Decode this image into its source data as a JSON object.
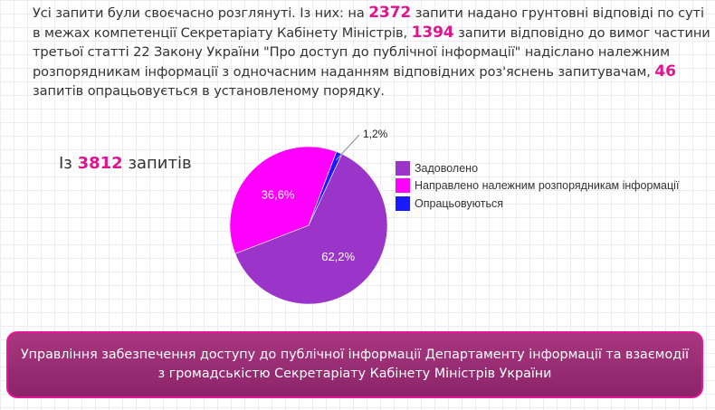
{
  "intro": {
    "t1": "Усі запити були своєчасно розглянуті. Із них: на ",
    "n1": "2372",
    "t2": " запити надано грунтовні відповіді по суті в межах компетенції Секретаріату Кабінету Міністрів, ",
    "n2": "1394",
    "t3": " запити відповідно до вимог частини третьої статті 22 Закону України \"Про доступ до публічної інформації\" надіслано належним розпорядникам інформації з одночасним наданням відповідних роз'яснень запитувачам, ",
    "n3": "46",
    "t4": " запитів опрацьовується в установленому порядку."
  },
  "total": {
    "prefix": "Із ",
    "value": "3812",
    "suffix": " запитів"
  },
  "chart_data": {
    "type": "pie",
    "title": "",
    "slices": [
      {
        "label": "Задоволено",
        "value": 62.2,
        "display": "62,2%",
        "color": "#9b35c9"
      },
      {
        "label": "Направлено належним розпорядникам інформації",
        "value": 36.6,
        "display": "36,6%",
        "color": "#ff00ff"
      },
      {
        "label": "Опрацьовуються",
        "value": 1.2,
        "display": "1,2%",
        "color": "#1a1aff"
      }
    ],
    "legend_position": "right"
  },
  "banner": {
    "line1": "Управління забезпечення доступу до публічної інформації Департаменту інформації та взаємодії",
    "line2": "з громадськістю Секретаріату Кабінету Міністрів України"
  }
}
